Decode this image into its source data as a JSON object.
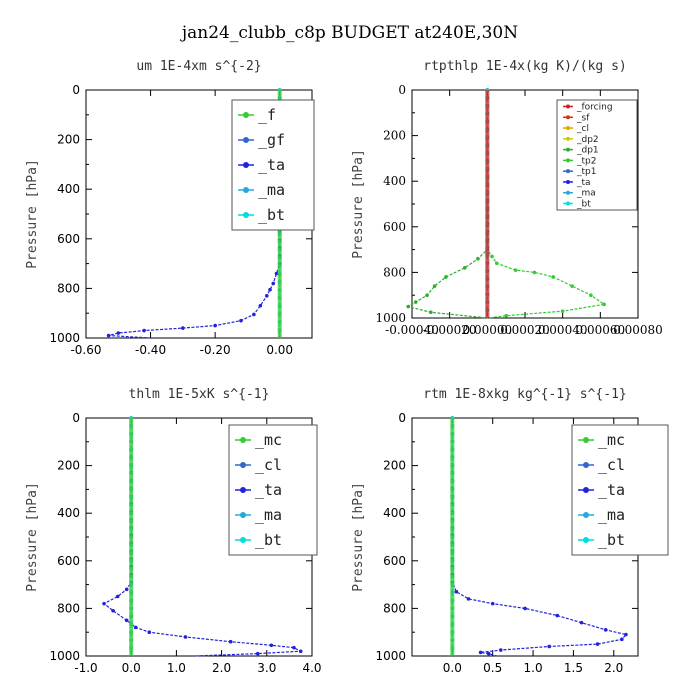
{
  "title": "jan24_clubb_c8p  BUDGET at240E,30N",
  "chart_data": [
    {
      "type": "line",
      "title": "um   1E-4xm s^{-2}",
      "ylabel": "Pressure [hPa]",
      "xlim": [
        -0.6,
        0.1
      ],
      "ylim": [
        1000,
        0
      ],
      "xticks": [
        -0.6,
        -0.4,
        -0.2,
        0.0
      ],
      "xtick_labels": [
        "-0.60",
        "-0.40",
        "-0.20",
        "0.00"
      ],
      "yticks": [
        0,
        200,
        400,
        600,
        800,
        1000
      ],
      "ytick_labels": [
        "0",
        "200",
        "400",
        "600",
        "800",
        "1000"
      ],
      "legend": [
        "_f",
        "_gf",
        "_ta",
        "_ma",
        "_bt"
      ],
      "series": [
        {
          "name": "_f",
          "color": "#33cc33",
          "points": [
            [
              0,
              0
            ],
            [
              0,
              1000
            ]
          ]
        },
        {
          "name": "_gf",
          "color": "#3366cc",
          "points": [
            [
              0,
              0
            ],
            [
              0,
              1000
            ]
          ]
        },
        {
          "name": "_ta",
          "color": "#2222dd",
          "points": [
            [
              0,
              0
            ],
            [
              0,
              700
            ],
            [
              -0.01,
              740
            ],
            [
              -0.02,
              780
            ],
            [
              -0.04,
              830
            ],
            [
              -0.06,
              870
            ],
            [
              -0.08,
              905
            ],
            [
              -0.12,
              930
            ],
            [
              -0.2,
              950
            ],
            [
              -0.3,
              960
            ],
            [
              -0.42,
              970
            ],
            [
              -0.5,
              980
            ],
            [
              -0.53,
              990
            ],
            [
              -0.4,
              1000
            ]
          ]
        },
        {
          "name": "_ma",
          "color": "#22aadd",
          "points": [
            [
              0,
              0
            ],
            [
              0,
              1000
            ]
          ]
        },
        {
          "name": "_bt",
          "color": "#00dddd",
          "points": [
            [
              0,
              0
            ],
            [
              0,
              1000
            ]
          ]
        }
      ]
    },
    {
      "type": "line",
      "title": "rtpthlp   1E-4x(kg K)/(kg s)",
      "ylabel": "Pressure [hPa]",
      "xlim": [
        -0.0004,
        0.0008
      ],
      "ylim": [
        1000,
        0
      ],
      "xticks": [
        -0.0004,
        -0.0002,
        0,
        0.0002,
        0.0004,
        0.0006,
        0.0008
      ],
      "xtick_labels": [
        "-0.00040",
        "-0.00020",
        "0.00000",
        "0.00020",
        "0.00040",
        "0.00060",
        "0.00080"
      ],
      "yticks": [
        0,
        200,
        400,
        600,
        800,
        1000
      ],
      "ytick_labels": [
        "0",
        "200",
        "400",
        "600",
        "800",
        "1000"
      ],
      "legend": [
        "_forcing",
        "_sf",
        "_cl",
        "_dp2",
        "_dp1",
        "_tp2",
        "_tp1",
        "_ta",
        "_ma",
        "_bt"
      ],
      "series": [
        {
          "name": "_forcing",
          "color": "#cc2222",
          "points": [
            [
              0,
              0
            ],
            [
              0,
              1000
            ]
          ]
        },
        {
          "name": "_sf",
          "color": "#dd3311",
          "points": [
            [
              0,
              0
            ],
            [
              0,
              1000
            ]
          ]
        },
        {
          "name": "_cl",
          "color": "#ddaa00",
          "points": [
            [
              0,
              0
            ],
            [
              0,
              1000
            ]
          ]
        },
        {
          "name": "_dp2",
          "color": "#cccc00",
          "points": [
            [
              0,
              0
            ],
            [
              0,
              1000
            ]
          ]
        },
        {
          "name": "_dp1",
          "color": "#33aa33",
          "points": [
            [
              0,
              0
            ],
            [
              0,
              700
            ],
            [
              -5e-05,
              740
            ],
            [
              -0.00012,
              780
            ],
            [
              -0.00022,
              820
            ],
            [
              -0.00028,
              860
            ],
            [
              -0.00032,
              900
            ],
            [
              -0.00038,
              930
            ],
            [
              -0.00042,
              950
            ],
            [
              -0.0003,
              975
            ],
            [
              0,
              1000
            ]
          ]
        },
        {
          "name": "_tp2",
          "color": "#33cc33",
          "points": [
            [
              0,
              0
            ],
            [
              0,
              700
            ],
            [
              5e-05,
              760
            ],
            [
              0.00015,
              790
            ],
            [
              0.00025,
              800
            ],
            [
              0.00035,
              820
            ],
            [
              0.00045,
              860
            ],
            [
              0.00055,
              900
            ],
            [
              0.00062,
              940
            ],
            [
              0.0004,
              970
            ],
            [
              0.0001,
              990
            ],
            [
              0,
              1000
            ]
          ]
        },
        {
          "name": "_tp1",
          "color": "#3366cc",
          "points": [
            [
              0,
              0
            ],
            [
              0,
              1000
            ]
          ]
        },
        {
          "name": "_ta",
          "color": "#2222dd",
          "points": [
            [
              0,
              0
            ],
            [
              0,
              1000
            ]
          ]
        },
        {
          "name": "_ma",
          "color": "#22aadd",
          "points": [
            [
              0,
              0
            ],
            [
              0,
              1000
            ]
          ]
        },
        {
          "name": "_bt",
          "color": "#00dddd",
          "points": [
            [
              0,
              0
            ],
            [
              0,
              1000
            ]
          ]
        }
      ]
    },
    {
      "type": "line",
      "title": "thlm   1E-5xK s^{-1}",
      "ylabel": "Pressure [hPa]",
      "xlim": [
        -1.0,
        4.0
      ],
      "ylim": [
        1000,
        0
      ],
      "xticks": [
        -1.0,
        0.0,
        1.0,
        2.0,
        3.0,
        4.0
      ],
      "xtick_labels": [
        "-1.0",
        "0.0",
        "1.0",
        "2.0",
        "3.0",
        "4.0"
      ],
      "yticks": [
        0,
        200,
        400,
        600,
        800,
        1000
      ],
      "ytick_labels": [
        "0",
        "200",
        "400",
        "600",
        "800",
        "1000"
      ],
      "legend": [
        "_mc",
        "_cl",
        "_ta",
        "_ma",
        "_bt"
      ],
      "series": [
        {
          "name": "_mc",
          "color": "#33cc33",
          "points": [
            [
              0,
              0
            ],
            [
              0,
              1000
            ]
          ]
        },
        {
          "name": "_cl",
          "color": "#3366cc",
          "points": [
            [
              0,
              0
            ],
            [
              0,
              1000
            ]
          ]
        },
        {
          "name": "_ta",
          "color": "#2222dd",
          "points": [
            [
              0,
              0
            ],
            [
              0,
              690
            ],
            [
              -0.1,
              720
            ],
            [
              -0.3,
              750
            ],
            [
              -0.6,
              780
            ],
            [
              -0.4,
              810
            ],
            [
              -0.1,
              850
            ],
            [
              0.1,
              880
            ],
            [
              0.4,
              900
            ],
            [
              1.2,
              920
            ],
            [
              2.2,
              940
            ],
            [
              3.1,
              955
            ],
            [
              3.6,
              965
            ],
            [
              3.75,
              980
            ],
            [
              2.8,
              990
            ],
            [
              1.4,
              1000
            ]
          ]
        },
        {
          "name": "_ma",
          "color": "#22aadd",
          "points": [
            [
              0,
              0
            ],
            [
              0,
              1000
            ]
          ]
        },
        {
          "name": "_bt",
          "color": "#00dddd",
          "points": [
            [
              0,
              0
            ],
            [
              0,
              1000
            ]
          ]
        }
      ]
    },
    {
      "type": "line",
      "title": "rtm   1E-8xkg kg^{-1} s^{-1}",
      "ylabel": "Pressure [hPa]",
      "xlim": [
        -0.5,
        2.3
      ],
      "ylim": [
        1000,
        0
      ],
      "xticks": [
        0.0,
        0.5,
        1.0,
        1.5,
        2.0
      ],
      "xtick_labels": [
        "0.0",
        "0.5",
        "1.0",
        "1.5",
        "2.0"
      ],
      "yticks": [
        0,
        200,
        400,
        600,
        800,
        1000
      ],
      "ytick_labels": [
        "0",
        "200",
        "400",
        "600",
        "800",
        "1000"
      ],
      "legend": [
        "_mc",
        "_cl",
        "_ta",
        "_ma",
        "_bt"
      ],
      "series": [
        {
          "name": "_mc",
          "color": "#33cc33",
          "points": [
            [
              0,
              0
            ],
            [
              0,
              1000
            ]
          ]
        },
        {
          "name": "_cl",
          "color": "#3366cc",
          "points": [
            [
              0,
              0
            ],
            [
              0,
              1000
            ]
          ]
        },
        {
          "name": "_ta",
          "color": "#2222dd",
          "points": [
            [
              0,
              0
            ],
            [
              0,
              690
            ],
            [
              0.05,
              730
            ],
            [
              0.2,
              760
            ],
            [
              0.5,
              780
            ],
            [
              0.9,
              800
            ],
            [
              1.3,
              830
            ],
            [
              1.6,
              860
            ],
            [
              1.9,
              890
            ],
            [
              2.15,
              910
            ],
            [
              2.1,
              930
            ],
            [
              1.8,
              950
            ],
            [
              1.2,
              960
            ],
            [
              0.6,
              975
            ],
            [
              0.35,
              985
            ],
            [
              0.45,
              990
            ],
            [
              0.55,
              1000
            ]
          ]
        },
        {
          "name": "_ma",
          "color": "#22aadd",
          "points": [
            [
              0,
              0
            ],
            [
              0,
              1000
            ]
          ]
        },
        {
          "name": "_bt",
          "color": "#00dddd",
          "points": [
            [
              0,
              0
            ],
            [
              0,
              1000
            ]
          ]
        }
      ]
    }
  ]
}
